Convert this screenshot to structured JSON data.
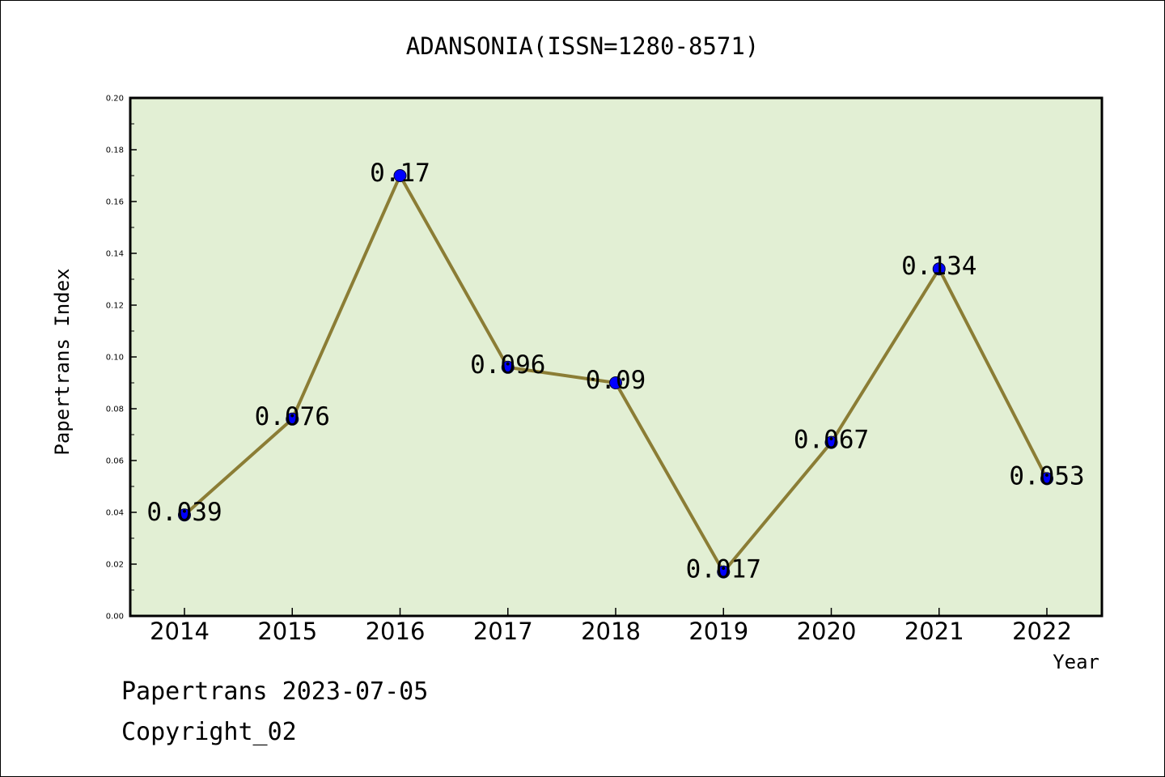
{
  "chart_data": {
    "type": "line",
    "title": "ADANSONIA(ISSN=1280-8571)",
    "xlabel": "Year",
    "ylabel": "Papertrans Index",
    "categories": [
      "2014",
      "2015",
      "2016",
      "2017",
      "2018",
      "2019",
      "2020",
      "2021",
      "2022"
    ],
    "values": [
      0.039,
      0.076,
      0.17,
      0.096,
      0.09,
      0.017,
      0.067,
      0.134,
      0.053
    ],
    "data_labels": [
      "0.039",
      "0.076",
      "0.17",
      "0.096",
      "0.09",
      "0.017",
      "0.067",
      "0.134",
      "0.053"
    ],
    "ylim": [
      0,
      0.2
    ],
    "yticks": [
      "0.00",
      "0.02",
      "0.04",
      "0.06",
      "0.08",
      "0.10",
      "0.12",
      "0.14",
      "0.16",
      "0.18",
      "0.20"
    ],
    "grid": false,
    "colors": {
      "plot_background": "#e2efd4",
      "line": "#8b7d35",
      "marker": "#0000ff"
    }
  },
  "footer": {
    "line1": "Papertrans 2023-07-05",
    "line2": "Copyright_02"
  }
}
